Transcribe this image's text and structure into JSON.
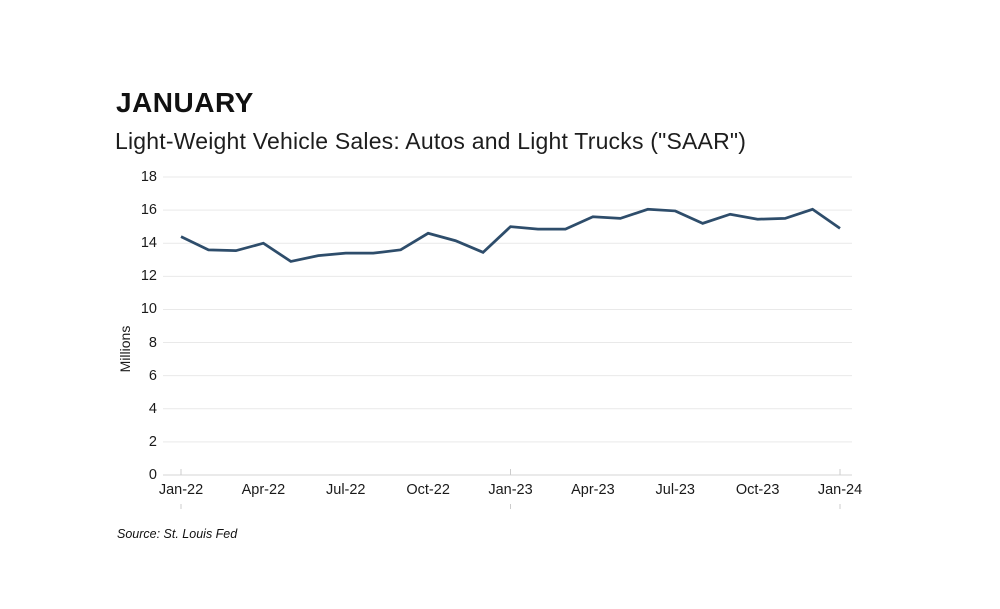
{
  "header": {
    "title": "JANUARY",
    "subtitle": "Light-Weight Vehicle Sales: Autos and Light Trucks (\"SAAR\")"
  },
  "chart_data": {
    "type": "line",
    "title": "Light-Weight Vehicle Sales: Autos and Light Trucks (\"SAAR\")",
    "x": [
      "Jan-22",
      "Feb-22",
      "Mar-22",
      "Apr-22",
      "May-22",
      "Jun-22",
      "Jul-22",
      "Aug-22",
      "Sep-22",
      "Oct-22",
      "Nov-22",
      "Dec-22",
      "Jan-23",
      "Feb-23",
      "Mar-23",
      "Apr-23",
      "May-23",
      "Jun-23",
      "Jul-23",
      "Aug-23",
      "Sep-23",
      "Oct-23",
      "Nov-23",
      "Dec-23",
      "Jan-24"
    ],
    "values": [
      14.4,
      13.6,
      13.55,
      14.0,
      12.9,
      13.25,
      13.4,
      13.4,
      13.6,
      14.6,
      14.15,
      13.45,
      15.0,
      14.85,
      14.85,
      15.6,
      15.5,
      16.05,
      15.95,
      15.2,
      15.75,
      15.45,
      15.5,
      16.05,
      14.9
    ],
    "x_tick_labels": [
      "Jan-22",
      "Apr-22",
      "Jul-22",
      "Oct-22",
      "Jan-23",
      "Apr-23",
      "Jul-23",
      "Oct-23",
      "Jan-24"
    ],
    "x_tick_every": 3,
    "y_ticks": [
      0,
      2,
      4,
      6,
      8,
      10,
      12,
      14,
      16,
      18
    ],
    "ylim": [
      0,
      18
    ],
    "ylabel": "Millions",
    "xlabel": "",
    "grid": "horizontal",
    "legend": "none",
    "line_color": "#2e4d6b",
    "grid_color": "#e9e9e9",
    "axis_color": "#d6d6d6",
    "year_tick_color": "#cccccc"
  },
  "footer": {
    "source": "Source: St. Louis Fed"
  }
}
